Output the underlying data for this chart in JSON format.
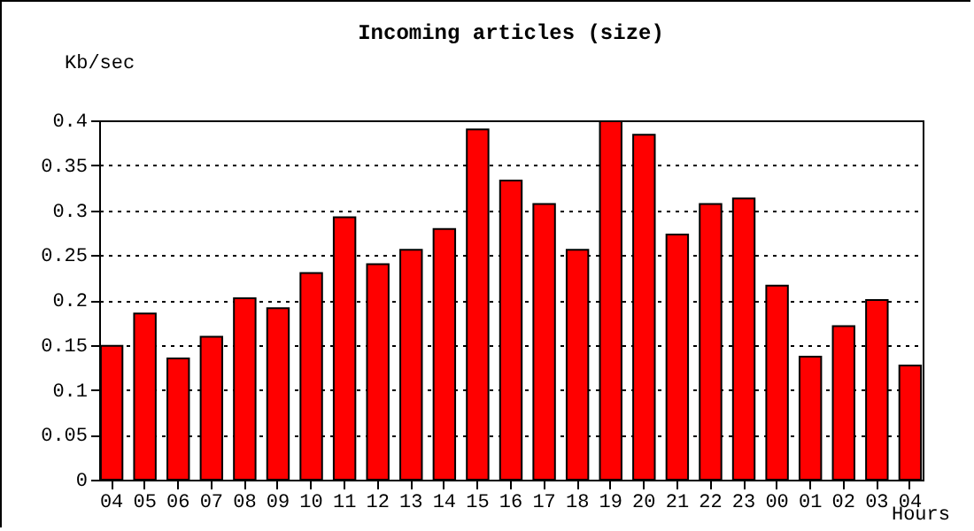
{
  "chart_data": {
    "type": "bar",
    "title": "Incoming articles (size)",
    "xlabel": "Hours",
    "ylabel": "Kb/sec",
    "categories": [
      "04",
      "05",
      "06",
      "07",
      "08",
      "09",
      "10",
      "11",
      "12",
      "13",
      "14",
      "15",
      "16",
      "17",
      "18",
      "19",
      "20",
      "21",
      "22",
      "23",
      "00",
      "01",
      "02",
      "03",
      "04"
    ],
    "values": [
      0.149,
      0.185,
      0.135,
      0.159,
      0.202,
      0.191,
      0.23,
      0.292,
      0.24,
      0.256,
      0.279,
      0.39,
      0.333,
      0.307,
      0.256,
      0.399,
      0.384,
      0.273,
      0.307,
      0.313,
      0.216,
      0.137,
      0.171,
      0.2,
      0.127
    ],
    "color": "#ff0000",
    "ylim": [
      0,
      0.4
    ],
    "yticks": [
      0,
      0.05,
      0.1,
      0.15,
      0.2,
      0.25,
      0.3,
      0.35,
      0.4
    ],
    "grid": "y"
  }
}
